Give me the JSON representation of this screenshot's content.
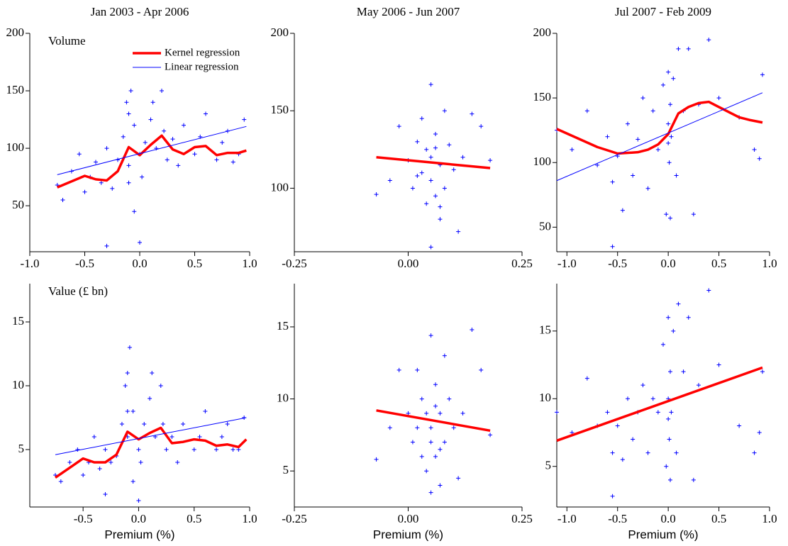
{
  "chart_data": [
    {
      "type": "scatter",
      "title": "Jan 2003 - Apr 2006",
      "annotation": "Volume",
      "legend": "upper right",
      "xlim": [
        -1,
        1
      ],
      "ylim": [
        10,
        200
      ],
      "xticks": [
        {
          "value": -1,
          "label": "-1.0"
        },
        -0.5,
        {
          "value": 0,
          "label": "0.0"
        },
        0.5,
        {
          "value": 1,
          "label": "1.0"
        }
      ],
      "yticks": [
        50,
        100,
        150,
        200
      ],
      "series": [
        {
          "type": "scatter",
          "color": "#0000ff",
          "x": [
            -0.75,
            -0.7,
            -0.62,
            -0.55,
            -0.5,
            -0.45,
            -0.4,
            -0.35,
            -0.3,
            -0.25,
            -0.2,
            -0.15,
            -0.12,
            -0.1,
            -0.1,
            -0.08,
            -0.05,
            0.0,
            0.02,
            0.05,
            0.1,
            0.12,
            0.15,
            0.2,
            0.22,
            0.25,
            0.3,
            0.35,
            0.4,
            0.5,
            0.55,
            0.6,
            0.7,
            0.75,
            0.8,
            0.85,
            0.9,
            0.95,
            -0.1,
            0.0,
            -0.3,
            -0.05
          ],
          "values": [
            68,
            55,
            80,
            95,
            62,
            75,
            88,
            70,
            100,
            65,
            90,
            110,
            140,
            130,
            85,
            150,
            120,
            95,
            75,
            105,
            125,
            140,
            100,
            150,
            115,
            90,
            108,
            85,
            120,
            95,
            110,
            130,
            90,
            105,
            115,
            88,
            95,
            125,
            70,
            18,
            15,
            45
          ]
        },
        {
          "type": "line",
          "name": "Kernel regression",
          "color": "#ff0000",
          "width": 3.5,
          "x": [
            -0.75,
            -0.6,
            -0.5,
            -0.4,
            -0.3,
            -0.2,
            -0.1,
            0.0,
            0.1,
            0.2,
            0.3,
            0.4,
            0.5,
            0.6,
            0.7,
            0.8,
            0.9,
            0.97
          ],
          "values": [
            66,
            72,
            76,
            73,
            72,
            80,
            101,
            94,
            103,
            111,
            99,
            95,
            101,
            102,
            94,
            96,
            96,
            98
          ]
        },
        {
          "type": "line",
          "name": "Linear regression",
          "color": "#0000ff",
          "width": 1,
          "x": [
            -0.75,
            0.97
          ],
          "values": [
            77,
            119
          ]
        }
      ]
    },
    {
      "type": "scatter",
      "title": "May 2006 - Jun 2007",
      "xlim": [
        -0.25,
        0.25
      ],
      "ylim": [
        59,
        200
      ],
      "xticks": [
        -0.25,
        {
          "value": 0,
          "label": "0.00"
        },
        0.25
      ],
      "yticks": [
        100,
        150,
        200
      ],
      "series": [
        {
          "type": "scatter",
          "color": "#0000ff",
          "x": [
            -0.07,
            -0.04,
            -0.02,
            0.0,
            0.01,
            0.02,
            0.03,
            0.03,
            0.04,
            0.04,
            0.05,
            0.05,
            0.05,
            0.06,
            0.06,
            0.07,
            0.07,
            0.08,
            0.08,
            0.09,
            0.1,
            0.11,
            0.12,
            0.14,
            0.16,
            0.18,
            0.05,
            0.07,
            0.02,
            0.06
          ],
          "values": [
            96,
            105,
            140,
            118,
            100,
            130,
            110,
            145,
            90,
            125,
            167,
            120,
            105,
            135,
            95,
            80,
            115,
            150,
            100,
            128,
            112,
            72,
            120,
            148,
            140,
            118,
            62,
            88,
            108,
            126
          ]
        },
        {
          "type": "line",
          "color": "#ff0000",
          "width": 3.5,
          "x": [
            -0.07,
            0.18
          ],
          "values": [
            120,
            113
          ]
        }
      ]
    },
    {
      "type": "scatter",
      "title": "Jul 2007 - Feb 2009",
      "xlim": [
        -1.1,
        1.0
      ],
      "ylim": [
        31,
        200
      ],
      "xticks": [
        {
          "value": -1,
          "label": "-1.0"
        },
        -0.5,
        {
          "value": 0,
          "label": "0.0"
        },
        0.5,
        {
          "value": 1,
          "label": "1.0"
        }
      ],
      "yticks": [
        50,
        100,
        150,
        200
      ],
      "series": [
        {
          "type": "scatter",
          "color": "#0000ff",
          "x": [
            -1.1,
            -0.95,
            -0.8,
            -0.7,
            -0.6,
            -0.55,
            -0.5,
            -0.45,
            -0.4,
            -0.35,
            -0.3,
            -0.25,
            -0.2,
            -0.15,
            -0.1,
            -0.05,
            -0.02,
            0.0,
            0.0,
            0.01,
            0.02,
            0.03,
            0.05,
            0.08,
            0.1,
            0.15,
            0.2,
            0.25,
            0.3,
            0.4,
            0.5,
            0.7,
            0.85,
            0.9,
            0.93,
            -0.55,
            0.02,
            0.0
          ],
          "values": [
            125,
            110,
            140,
            98,
            120,
            35,
            105,
            63,
            130,
            90,
            118,
            150,
            80,
            140,
            110,
            160,
            60,
            130,
            170,
            100,
            145,
            120,
            165,
            90,
            188,
            140,
            188,
            60,
            145,
            195,
            150,
            135,
            110,
            103,
            168,
            85,
            57,
            115
          ]
        },
        {
          "type": "line",
          "color": "#ff0000",
          "width": 3.5,
          "x": [
            -1.1,
            -0.9,
            -0.7,
            -0.5,
            -0.3,
            -0.2,
            -0.1,
            0.0,
            0.1,
            0.2,
            0.3,
            0.4,
            0.5,
            0.6,
            0.7,
            0.8,
            0.93
          ],
          "values": [
            126,
            119,
            112,
            107,
            108,
            110,
            114,
            122,
            138,
            143,
            146,
            147,
            143,
            139,
            135,
            133,
            131
          ]
        },
        {
          "type": "line",
          "color": "#0000ff",
          "width": 1,
          "x": [
            -1.1,
            0.93
          ],
          "values": [
            86,
            154
          ]
        }
      ]
    },
    {
      "type": "scatter",
      "annotation": "Value (£ bn)",
      "xlabel": "Premium (%)",
      "xlim": [
        -0.98,
        1.0
      ],
      "ylim": [
        0.5,
        18
      ],
      "xticks": [
        -0.5,
        {
          "value": 0,
          "label": "0.0"
        },
        0.5,
        {
          "value": 1,
          "label": "1.0"
        }
      ],
      "yticks": [
        5,
        10,
        15
      ],
      "series": [
        {
          "type": "scatter",
          "color": "#0000ff",
          "x": [
            -0.75,
            -0.7,
            -0.62,
            -0.55,
            -0.5,
            -0.45,
            -0.4,
            -0.35,
            -0.3,
            -0.25,
            -0.2,
            -0.15,
            -0.12,
            -0.1,
            -0.1,
            -0.08,
            -0.05,
            0.0,
            0.02,
            0.05,
            0.1,
            0.12,
            0.15,
            0.2,
            0.22,
            0.25,
            0.3,
            0.35,
            0.4,
            0.5,
            0.55,
            0.6,
            0.7,
            0.75,
            0.8,
            0.85,
            0.9,
            0.95,
            -0.1,
            0.0,
            -0.3,
            -0.05
          ],
          "values": [
            3,
            2.5,
            4,
            5,
            3,
            4,
            6,
            3.5,
            5,
            4,
            4.5,
            7,
            10,
            11,
            6,
            13,
            8,
            5,
            4,
            7,
            9,
            11,
            6,
            10,
            7,
            5,
            6,
            4,
            7,
            5,
            6,
            8,
            5,
            6,
            7,
            5,
            5,
            7.5,
            8,
            1,
            1.5,
            2.5
          ]
        },
        {
          "type": "line",
          "color": "#ff0000",
          "width": 3.5,
          "x": [
            -0.75,
            -0.6,
            -0.5,
            -0.4,
            -0.3,
            -0.2,
            -0.1,
            0.0,
            0.1,
            0.2,
            0.3,
            0.4,
            0.5,
            0.6,
            0.7,
            0.8,
            0.9,
            0.97
          ],
          "values": [
            2.8,
            3.7,
            4.3,
            4.0,
            4.0,
            4.6,
            6.4,
            5.8,
            6.3,
            6.7,
            5.5,
            5.6,
            5.8,
            5.7,
            5.3,
            5.4,
            5.2,
            5.8
          ]
        },
        {
          "type": "line",
          "color": "#0000ff",
          "width": 1,
          "x": [
            -0.75,
            0.97
          ],
          "values": [
            4.6,
            7.5
          ]
        }
      ]
    },
    {
      "type": "scatter",
      "xlabel": "Premium (%)",
      "xlim": [
        -0.25,
        0.25
      ],
      "ylim": [
        2.5,
        18
      ],
      "xticks": [
        -0.25,
        {
          "value": 0,
          "label": "0.00"
        },
        0.25
      ],
      "yticks": [
        5,
        10,
        15
      ],
      "series": [
        {
          "type": "scatter",
          "color": "#0000ff",
          "x": [
            -0.07,
            -0.04,
            -0.02,
            0.0,
            0.01,
            0.02,
            0.03,
            0.03,
            0.04,
            0.04,
            0.05,
            0.05,
            0.05,
            0.06,
            0.06,
            0.07,
            0.07,
            0.08,
            0.08,
            0.09,
            0.1,
            0.11,
            0.12,
            0.14,
            0.16,
            0.18,
            0.05,
            0.07,
            0.02,
            0.06
          ],
          "values": [
            5.8,
            8,
            12,
            9,
            7,
            12,
            6,
            10,
            5,
            9,
            14.4,
            8,
            7,
            11,
            6,
            4,
            9,
            13,
            7,
            10,
            8,
            4.5,
            9,
            14.8,
            12,
            7.5,
            3.5,
            6.5,
            8,
            9.5
          ]
        },
        {
          "type": "line",
          "color": "#ff0000",
          "width": 3.5,
          "x": [
            -0.07,
            0.18
          ],
          "values": [
            9.2,
            7.8
          ]
        }
      ]
    },
    {
      "type": "scatter",
      "xlabel": "Premium (%)",
      "xlim": [
        -1.1,
        1.0
      ],
      "ylim": [
        2,
        18.5
      ],
      "xticks": [
        {
          "value": -1,
          "label": "-1.0"
        },
        -0.5,
        {
          "value": 0,
          "label": "0.0"
        },
        0.5,
        {
          "value": 1,
          "label": "1.0"
        }
      ],
      "yticks": [
        5,
        10,
        15
      ],
      "series": [
        {
          "type": "scatter",
          "color": "#0000ff",
          "x": [
            -1.1,
            -0.95,
            -0.8,
            -0.7,
            -0.6,
            -0.55,
            -0.5,
            -0.45,
            -0.4,
            -0.35,
            -0.3,
            -0.25,
            -0.2,
            -0.15,
            -0.1,
            -0.05,
            -0.02,
            0.0,
            0.0,
            0.01,
            0.02,
            0.03,
            0.05,
            0.08,
            0.1,
            0.15,
            0.2,
            0.25,
            0.3,
            0.4,
            0.5,
            0.7,
            0.85,
            0.9,
            0.93,
            -0.55,
            0.02,
            0.0
          ],
          "values": [
            9,
            7.5,
            11.5,
            8,
            9,
            2.8,
            8,
            5.5,
            10,
            7,
            9,
            11,
            6,
            10,
            9,
            14,
            5,
            10,
            16,
            7,
            12,
            9,
            15,
            6,
            17,
            12,
            16,
            4,
            11,
            18,
            12.5,
            8,
            6,
            7.5,
            12,
            6,
            4,
            8.5
          ]
        },
        {
          "type": "line",
          "color": "#ff0000",
          "width": 3.5,
          "x": [
            -1.1,
            0.93
          ],
          "values": [
            6.9,
            12.3
          ]
        }
      ]
    }
  ]
}
